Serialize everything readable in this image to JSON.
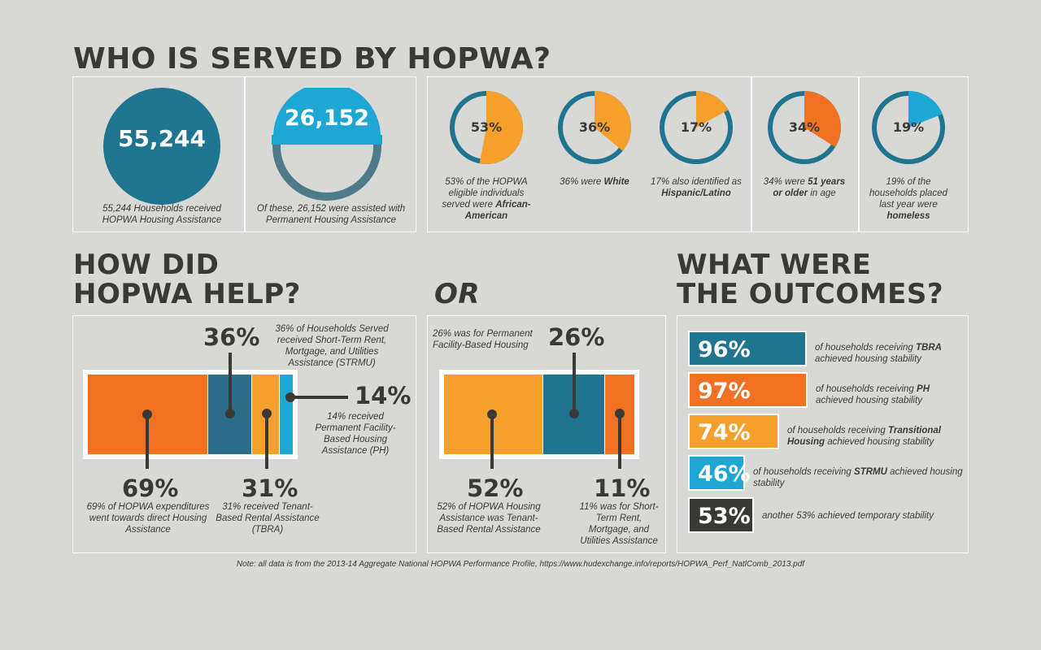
{
  "colors": {
    "teal": "#1f7490",
    "orange": "#f07122",
    "amber": "#f5a02a",
    "cyan": "#1ea7d2",
    "dark": "#3a3935",
    "gray_ring": "#5b7b87"
  },
  "section1": {
    "title": "WHO IS SERVED BY HOPWA?",
    "households_number": "55,244",
    "households_caption": "55,244 Households received HOPWA Housing Assistance",
    "permanent_number": "26,152",
    "permanent_caption": "Of these, 26,152 were assisted with Permanent Housing Assistance",
    "donuts": [
      {
        "pct_label": "53%",
        "value": 53,
        "color": "#f5a02a",
        "caption_pre": "53% of the HOPWA eligible individuals served were ",
        "caption_bold": "African-American",
        "caption_post": ""
      },
      {
        "pct_label": "36%",
        "value": 36,
        "color": "#f5a02a",
        "caption_pre": "36% were ",
        "caption_bold": "White",
        "caption_post": ""
      },
      {
        "pct_label": "17%",
        "value": 17,
        "color": "#f5a02a",
        "caption_pre": "17% also identified as ",
        "caption_bold": "Hispanic/Latino",
        "caption_post": ""
      },
      {
        "pct_label": "34%",
        "value": 34,
        "color": "#f07122",
        "caption_pre": "34% were ",
        "caption_bold": "51 years or older",
        "caption_post": " in age"
      },
      {
        "pct_label": "19%",
        "value": 19,
        "color": "#1ea7d2",
        "caption_pre": "19% of the households placed last year were ",
        "caption_bold": "homeless",
        "caption_post": ""
      }
    ]
  },
  "section2": {
    "title_line1": "HOW DID",
    "title_line2": "HOPWA HELP?",
    "or_label": "OR",
    "left": {
      "label_36": "36%",
      "caption_36": "36% of Households Served received Short-Term Rent, Mortgage, and Utilities Assistance (STRMU)",
      "label_14": "14%",
      "caption_14": "14%  received Permanent Facility-Based Housing Assistance (PH)",
      "label_69": "69%",
      "caption_69": "69% of HOPWA expenditures went towards direct Housing Assistance",
      "label_31": "31%",
      "caption_31": "31%  received Tenant-Based Rental Assistance (TBRA)"
    },
    "right": {
      "label_26": "26%",
      "caption_26": "26% was for Permanent Facility-Based Housing",
      "label_52": "52%",
      "caption_52": "52% of HOPWA Housing Assistance was Tenant-Based Rental Assistance",
      "label_11": "11%",
      "caption_11": "11% was for Short-Term Rent, Mortgage, and Utilities Assistance"
    }
  },
  "section3": {
    "title_line1": "WHAT WERE",
    "title_line2": "THE OUTCOMES?",
    "outcomes": [
      {
        "pct": "96%",
        "value": 96,
        "color": "#1f7490",
        "pre": "of households receiving ",
        "bold": "TBRA",
        "post": " achieved housing stability"
      },
      {
        "pct": "97%",
        "value": 97,
        "color": "#f07122",
        "pre": "of households receiving ",
        "bold": "PH",
        "post": " achieved housing stability"
      },
      {
        "pct": "74%",
        "value": 74,
        "color": "#f5a02a",
        "pre": "of households receiving ",
        "bold": "Transitional Housing",
        "post": " achieved housing stability"
      },
      {
        "pct": "46%",
        "value": 46,
        "color": "#1ea7d2",
        "pre": "of households receiving ",
        "bold": "STRMU",
        "post": " achieved housing stability"
      },
      {
        "pct": "53%",
        "value": 53,
        "color": "#3a3935",
        "pre": "another 53% achieved temporary stability",
        "bold": "",
        "post": ""
      }
    ]
  },
  "note": "Note: all data is from the 2013-14 Aggregate National HOPWA Performance Profile, https://www.hudexchange.info/reports/HOPWA_Perf_NatlComb_2013.pdf"
}
